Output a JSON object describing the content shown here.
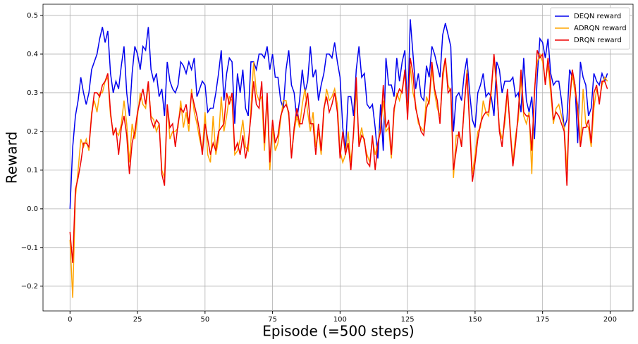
{
  "chart_data": {
    "type": "line",
    "xlabel": "Episode (=500 steps)",
    "ylabel": "Reward",
    "x": [
      0,
      1,
      2,
      3,
      4,
      5,
      6,
      7,
      8,
      9,
      10,
      11,
      12,
      13,
      14,
      15,
      16,
      17,
      18,
      19,
      20,
      21,
      22,
      23,
      24,
      25,
      26,
      27,
      28,
      29,
      30,
      31,
      32,
      33,
      34,
      35,
      36,
      37,
      38,
      39,
      40,
      41,
      42,
      43,
      44,
      45,
      46,
      47,
      48,
      49,
      50,
      51,
      52,
      53,
      54,
      55,
      56,
      57,
      58,
      59,
      60,
      61,
      62,
      63,
      64,
      65,
      66,
      67,
      68,
      69,
      70,
      71,
      72,
      73,
      74,
      75,
      76,
      77,
      78,
      79,
      80,
      81,
      82,
      83,
      84,
      85,
      86,
      87,
      88,
      89,
      90,
      91,
      92,
      93,
      94,
      95,
      96,
      97,
      98,
      99,
      100,
      101,
      102,
      103,
      104,
      105,
      106,
      107,
      108,
      109,
      110,
      111,
      112,
      113,
      114,
      115,
      116,
      117,
      118,
      119,
      120,
      121,
      122,
      123,
      124,
      125,
      126,
      127,
      128,
      129,
      130,
      131,
      132,
      133,
      134,
      135,
      136,
      137,
      138,
      139,
      140,
      141,
      142,
      143,
      144,
      145,
      146,
      147,
      148,
      149,
      150,
      151,
      152,
      153,
      154,
      155,
      156,
      157,
      158,
      159,
      160,
      161,
      162,
      163,
      164,
      165,
      166,
      167,
      168,
      169,
      170,
      171,
      172,
      173,
      174,
      175,
      176,
      177,
      178,
      179,
      180,
      181,
      182,
      183,
      184,
      185,
      186,
      187,
      188,
      189,
      190,
      191,
      192,
      193,
      194,
      195,
      196,
      197,
      198,
      199
    ],
    "series": [
      {
        "name": "DEQN reward",
        "color": "#0000ee",
        "values": [
          0,
          0.16,
          0.24,
          0.28,
          0.34,
          0.3,
          0.27,
          0.3,
          0.36,
          0.38,
          0.4,
          0.44,
          0.47,
          0.43,
          0.46,
          0.35,
          0.3,
          0.33,
          0.31,
          0.37,
          0.42,
          0.3,
          0.24,
          0.35,
          0.42,
          0.4,
          0.36,
          0.42,
          0.41,
          0.47,
          0.36,
          0.33,
          0.35,
          0.29,
          0.31,
          0.24,
          0.38,
          0.33,
          0.31,
          0.3,
          0.32,
          0.38,
          0.37,
          0.35,
          0.38,
          0.36,
          0.39,
          0.29,
          0.31,
          0.33,
          0.32,
          0.25,
          0.26,
          0.26,
          0.3,
          0.35,
          0.41,
          0.28,
          0.35,
          0.39,
          0.38,
          0.22,
          0.35,
          0.3,
          0.36,
          0.26,
          0.24,
          0.38,
          0.38,
          0.36,
          0.4,
          0.4,
          0.39,
          0.42,
          0.36,
          0.4,
          0.34,
          0.34,
          0.28,
          0.26,
          0.36,
          0.41,
          0.32,
          0.3,
          0.23,
          0.28,
          0.36,
          0.3,
          0.33,
          0.42,
          0.34,
          0.36,
          0.28,
          0.32,
          0.35,
          0.4,
          0.4,
          0.39,
          0.43,
          0.38,
          0.34,
          0.21,
          0.15,
          0.29,
          0.29,
          0.24,
          0.36,
          0.42,
          0.34,
          0.35,
          0.27,
          0.26,
          0.27,
          0.21,
          0.13,
          0.27,
          0.15,
          0.39,
          0.32,
          0.32,
          0.29,
          0.39,
          0.33,
          0.38,
          0.41,
          0.24,
          0.49,
          0.4,
          0.31,
          0.35,
          0.29,
          0.28,
          0.37,
          0.34,
          0.42,
          0.4,
          0.37,
          0.34,
          0.45,
          0.48,
          0.45,
          0.42,
          0.2,
          0.29,
          0.3,
          0.28,
          0.35,
          0.39,
          0.3,
          0.23,
          0.21,
          0.3,
          0.32,
          0.35,
          0.29,
          0.3,
          0.29,
          0.24,
          0.38,
          0.36,
          0.3,
          0.33,
          0.33,
          0.33,
          0.34,
          0.29,
          0.3,
          0.25,
          0.39,
          0.28,
          0.25,
          0.29,
          0.18,
          0.34,
          0.44,
          0.43,
          0.39,
          0.44,
          0.35,
          0.32,
          0.33,
          0.33,
          0.28,
          0.21,
          0.23,
          0.36,
          0.34,
          0.32,
          0.17,
          0.38,
          0.34,
          0.32,
          0.24,
          0.26,
          0.35,
          0.33,
          0.32,
          0.35,
          0.33,
          0.35
        ]
      },
      {
        "name": "ADRQN reward",
        "color": "#ffa500",
        "values": [
          -0.08,
          -0.23,
          0.03,
          0.1,
          0.18,
          0.16,
          0.18,
          0.15,
          0.25,
          0.28,
          0.25,
          0.3,
          0.3,
          0.33,
          0.34,
          0.24,
          0.2,
          0.2,
          0.19,
          0.22,
          0.28,
          0.22,
          0.12,
          0.22,
          0.18,
          0.24,
          0.3,
          0.27,
          0.26,
          0.32,
          0.24,
          0.23,
          0.2,
          0.22,
          0.1,
          0.08,
          0.27,
          0.18,
          0.2,
          0.2,
          0.21,
          0.28,
          0.21,
          0.25,
          0.2,
          0.31,
          0.25,
          0.22,
          0.18,
          0.15,
          0.25,
          0.14,
          0.12,
          0.24,
          0.14,
          0.18,
          0.29,
          0.2,
          0.24,
          0.29,
          0.28,
          0.14,
          0.15,
          0.18,
          0.23,
          0.16,
          0.15,
          0.26,
          0.38,
          0.3,
          0.28,
          0.29,
          0.15,
          0.29,
          0.1,
          0.21,
          0.15,
          0.17,
          0.23,
          0.28,
          0.28,
          0.24,
          0.14,
          0.2,
          0.24,
          0.21,
          0.27,
          0.31,
          0.25,
          0.2,
          0.25,
          0.16,
          0.2,
          0.14,
          0.25,
          0.31,
          0.28,
          0.29,
          0.31,
          0.27,
          0.15,
          0.12,
          0.14,
          0.2,
          0.12,
          0.19,
          0.31,
          0.17,
          0.21,
          0.17,
          0.14,
          0.12,
          0.18,
          0.14,
          0.17,
          0.21,
          0.28,
          0.2,
          0.21,
          0.13,
          0.25,
          0.3,
          0.28,
          0.31,
          0.35,
          0.25,
          0.37,
          0.3,
          0.27,
          0.22,
          0.21,
          0.2,
          0.29,
          0.27,
          0.36,
          0.3,
          0.26,
          0.24,
          0.33,
          0.39,
          0.32,
          0.3,
          0.08,
          0.19,
          0.19,
          0.17,
          0.26,
          0.36,
          0.22,
          0.09,
          0.14,
          0.2,
          0.21,
          0.28,
          0.25,
          0.24,
          0.3,
          0.39,
          0.31,
          0.21,
          0.18,
          0.22,
          0.3,
          0.21,
          0.12,
          0.19,
          0.23,
          0.34,
          0.24,
          0.22,
          0.25,
          0.09,
          0.31,
          0.38,
          0.4,
          0.38,
          0.33,
          0.37,
          0.3,
          0.22,
          0.26,
          0.27,
          0.24,
          0.21,
          0.1,
          0.27,
          0.35,
          0.3,
          0.27,
          0.16,
          0.31,
          0.22,
          0.21,
          0.16,
          0.26,
          0.31,
          0.28,
          0.32,
          0.34,
          0.33
        ]
      },
      {
        "name": "DRQN reward",
        "color": "#ee0000",
        "values": [
          -0.06,
          -0.14,
          0.05,
          0.08,
          0.12,
          0.17,
          0.17,
          0.16,
          0.24,
          0.3,
          0.3,
          0.29,
          0.32,
          0.33,
          0.35,
          0.25,
          0.19,
          0.21,
          0.14,
          0.21,
          0.24,
          0.19,
          0.09,
          0.17,
          0.2,
          0.25,
          0.28,
          0.31,
          0.27,
          0.33,
          0.23,
          0.21,
          0.23,
          0.22,
          0.09,
          0.06,
          0.27,
          0.21,
          0.22,
          0.16,
          0.22,
          0.26,
          0.25,
          0.27,
          0.22,
          0.3,
          0.27,
          0.24,
          0.2,
          0.14,
          0.22,
          0.18,
          0.14,
          0.17,
          0.15,
          0.2,
          0.21,
          0.22,
          0.3,
          0.27,
          0.3,
          0.15,
          0.17,
          0.14,
          0.19,
          0.13,
          0.17,
          0.24,
          0.33,
          0.27,
          0.26,
          0.33,
          0.17,
          0.3,
          0.12,
          0.23,
          0.17,
          0.19,
          0.24,
          0.26,
          0.27,
          0.25,
          0.13,
          0.21,
          0.26,
          0.22,
          0.22,
          0.26,
          0.3,
          0.22,
          0.22,
          0.14,
          0.22,
          0.15,
          0.26,
          0.29,
          0.25,
          0.27,
          0.3,
          0.25,
          0.13,
          0.2,
          0.14,
          0.17,
          0.1,
          0.2,
          0.34,
          0.16,
          0.19,
          0.18,
          0.12,
          0.11,
          0.19,
          0.1,
          0.17,
          0.2,
          0.32,
          0.21,
          0.23,
          0.14,
          0.26,
          0.29,
          0.31,
          0.3,
          0.36,
          0.23,
          0.39,
          0.35,
          0.26,
          0.23,
          0.2,
          0.19,
          0.26,
          0.28,
          0.38,
          0.31,
          0.28,
          0.22,
          0.35,
          0.39,
          0.3,
          0.31,
          0.1,
          0.15,
          0.2,
          0.16,
          0.27,
          0.35,
          0.21,
          0.07,
          0.12,
          0.18,
          0.22,
          0.24,
          0.25,
          0.25,
          0.31,
          0.4,
          0.32,
          0.2,
          0.16,
          0.24,
          0.31,
          0.2,
          0.11,
          0.17,
          0.25,
          0.36,
          0.25,
          0.24,
          0.24,
          0.15,
          0.3,
          0.41,
          0.39,
          0.4,
          0.32,
          0.39,
          0.32,
          0.23,
          0.25,
          0.24,
          0.22,
          0.2,
          0.06,
          0.28,
          0.36,
          0.32,
          0.25,
          0.16,
          0.21,
          0.21,
          0.23,
          0.17,
          0.3,
          0.32,
          0.27,
          0.33,
          0.33,
          0.31
        ]
      }
    ],
    "xlim": [
      -10,
      208.5
    ],
    "xticks": [
      0,
      25,
      50,
      75,
      100,
      125,
      150,
      175,
      200
    ],
    "ylim": [
      -0.264,
      0.529
    ],
    "yticks": [
      {
        "value": -0.2,
        "label": "−0.2"
      },
      {
        "value": -0.1,
        "label": "−0.1"
      },
      {
        "value": 0,
        "label": "0.0"
      },
      0.1,
      0.2,
      0.3,
      0.4,
      0.5
    ],
    "grid": true,
    "legend": "upper right"
  }
}
